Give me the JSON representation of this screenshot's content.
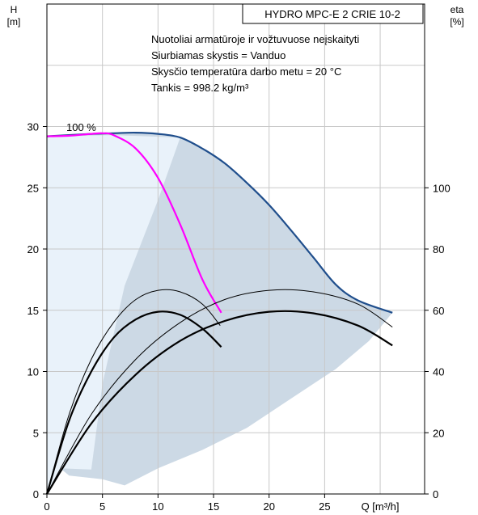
{
  "chart_data": {
    "type": "line",
    "title": "HYDRO MPC-E 2 CRIE 10-2",
    "notes": [
      "Nuotoliai armatūroje ir vožtuvuose neįskaityti",
      "Siurbiamas skystis = Vanduo",
      "Skysčio temperatūra darbo metu = 20 °C",
      "Tankis = 998.2 kg/m³"
    ],
    "y_left_label": [
      "H",
      "[m]"
    ],
    "y_right_label": [
      "eta",
      "[%]"
    ],
    "x_label": "Q [m³/h]",
    "x_range": [
      0,
      34
    ],
    "y_left_range": [
      0,
      40
    ],
    "y_right_range": [
      0,
      160
    ],
    "x_ticks": [
      0,
      5,
      10,
      15,
      20,
      25
    ],
    "y_left_ticks": [
      0,
      5,
      10,
      15,
      20,
      25,
      30
    ],
    "y_right_ticks": [
      0,
      20,
      40,
      60,
      80,
      100
    ],
    "grid": true,
    "annotation": "100 %",
    "colors": {
      "operating_area": "#ccd9e5",
      "single_pump_area": "#e9f2fa",
      "max_curve_two_pumps": "#1f4e8c",
      "max_curve_one_pump": "#ff00ff",
      "efficiency_curves": "#000000",
      "grid": "#c8c8c8"
    },
    "series": [
      {
        "axis": "left",
        "points": [
          [
            0,
            29.2
          ],
          [
            2,
            29.25
          ],
          [
            4,
            29.4
          ],
          [
            5,
            29.45
          ],
          [
            6,
            29.3
          ],
          [
            8,
            28.2
          ],
          [
            10,
            25.8
          ],
          [
            12,
            22.0
          ],
          [
            14,
            17.5
          ],
          [
            15.7,
            14.8
          ]
        ]
      },
      {
        "axis": "left",
        "points": [
          [
            0,
            29.2
          ],
          [
            4,
            29.4
          ],
          [
            6,
            29.45
          ],
          [
            8,
            29.5
          ],
          [
            10,
            29.4
          ],
          [
            12,
            29.1
          ],
          [
            14,
            28.2
          ],
          [
            16,
            27.0
          ],
          [
            18,
            25.4
          ],
          [
            20,
            23.6
          ],
          [
            22,
            21.5
          ],
          [
            24,
            19.3
          ],
          [
            26,
            17.1
          ],
          [
            28,
            15.8
          ],
          [
            31.1,
            14.8
          ]
        ]
      },
      {
        "axis": "right",
        "points": [
          [
            0,
            0
          ],
          [
            2,
            26
          ],
          [
            4,
            44
          ],
          [
            6,
            56
          ],
          [
            8,
            63.5
          ],
          [
            10,
            66.5
          ],
          [
            12,
            66
          ],
          [
            14,
            62
          ],
          [
            15.6,
            55
          ]
        ]
      },
      {
        "axis": "right",
        "points": [
          [
            0,
            0
          ],
          [
            2,
            24
          ],
          [
            4,
            40
          ],
          [
            6,
            51
          ],
          [
            8,
            57
          ],
          [
            10,
            59.5
          ],
          [
            12,
            58.5
          ],
          [
            14,
            54
          ],
          [
            15.7,
            48
          ]
        ]
      },
      {
        "axis": "right",
        "points": [
          [
            0,
            0
          ],
          [
            4,
            26
          ],
          [
            8,
            44
          ],
          [
            12,
            56
          ],
          [
            16,
            63.5
          ],
          [
            20,
            66.5
          ],
          [
            24,
            66
          ],
          [
            28,
            62
          ],
          [
            31.1,
            54.5
          ]
        ]
      },
      {
        "axis": "right",
        "points": [
          [
            0,
            0
          ],
          [
            4,
            23
          ],
          [
            8,
            39
          ],
          [
            12,
            50
          ],
          [
            16,
            56.5
          ],
          [
            20,
            59.5
          ],
          [
            24,
            59
          ],
          [
            28,
            55
          ],
          [
            31.1,
            48.5
          ]
        ]
      }
    ]
  }
}
